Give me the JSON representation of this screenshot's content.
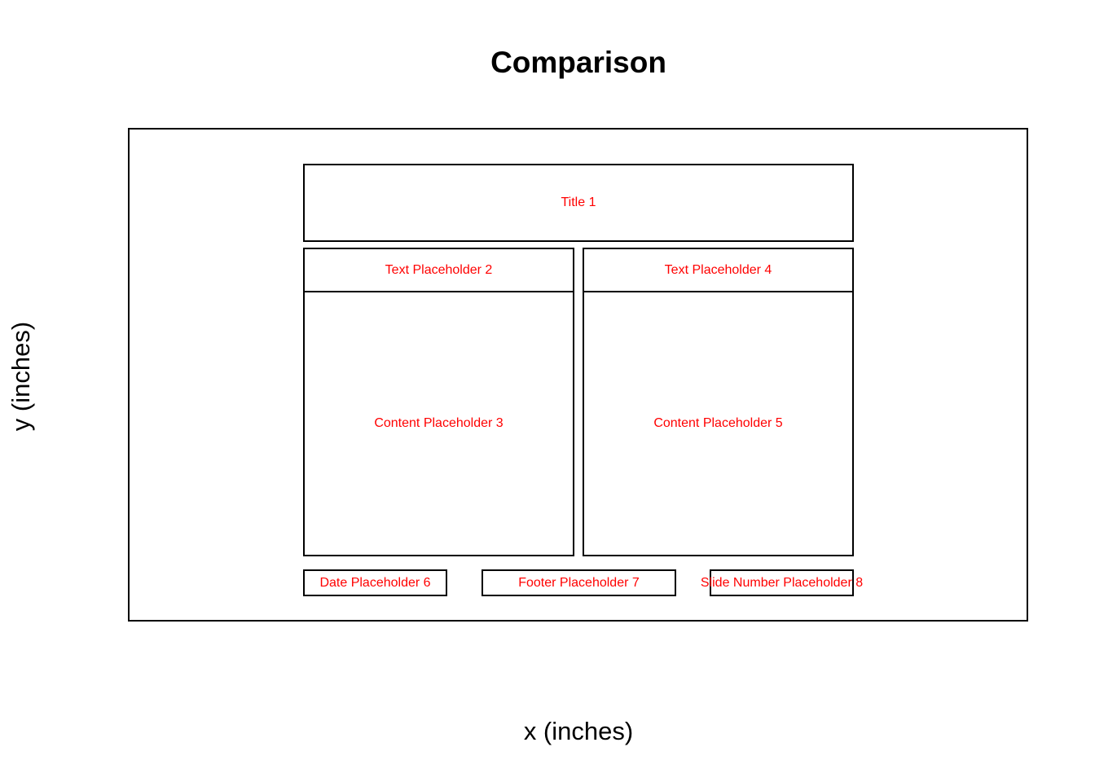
{
  "title": "Comparison",
  "axes": {
    "xlabel": "x (inches)",
    "ylabel": "y (inches)"
  },
  "colors": {
    "outline": "#000000",
    "label": "#ff0000",
    "background": "#ffffff"
  },
  "placeholders": {
    "title_1": "Title 1",
    "text_2": "Text Placeholder 2",
    "content_3": "Content Placeholder 3",
    "text_4": "Text Placeholder 4",
    "content_5": "Content Placeholder 5",
    "date_6": "Date Placeholder 6",
    "footer_7": "Footer Placeholder 7",
    "slide_number_8": "Slide Number Placeholder 8"
  }
}
